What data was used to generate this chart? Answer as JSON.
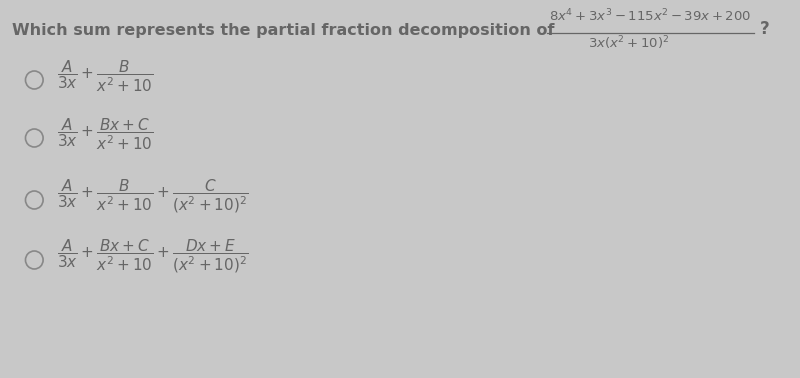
{
  "background_color": "#c8c8c8",
  "title_text": "Which sum represents the partial fraction decomposition of",
  "fraction_numerator": "$8x^4 + 3x^3 - 115x^2 - 39x + 200$",
  "fraction_denominator": "$3x(x^2 + 10)^2$",
  "options": [
    {
      "expr": "$\\dfrac{A}{3x} + \\dfrac{B}{x^2 + 10}$"
    },
    {
      "expr": "$\\dfrac{A}{3x} + \\dfrac{Bx + C}{x^2 + 10}$"
    },
    {
      "expr": "$\\dfrac{A}{3x} + \\dfrac{B}{x^2 + 10} + \\dfrac{C}{(x^2 + 10)^2}$"
    },
    {
      "expr": "$\\dfrac{A}{3x} + \\dfrac{Bx + C}{x^2 + 10} + \\dfrac{Dx + E}{(x^2 + 10)^2}$"
    }
  ],
  "text_color": "#666666",
  "circle_color": "#888888",
  "title_fontsize": 11.5,
  "math_fontsize": 10,
  "option_fontsize": 11
}
